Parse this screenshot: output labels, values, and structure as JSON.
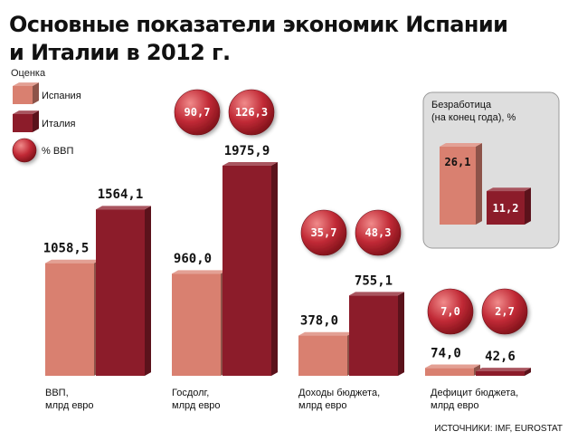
{
  "header": {
    "title_line1": "Основные показатели экономик Испании",
    "title_line2": "и Италии в 2012 г.",
    "subtitle": "Оценка"
  },
  "legend": {
    "spain": "Испания",
    "italy": "Италия",
    "gdp_pct": "% ВВП"
  },
  "colors": {
    "spain": "#d98070",
    "italy": "#8c1c2a",
    "circle": "#c12a36",
    "box": "#dedede"
  },
  "chart_data": [
    {
      "type": "bar",
      "categories": [
        "ВВП, млрд евро",
        "Госдолг, млрд евро",
        "Доходы бюджета, млрд евро",
        "Дефицит бюджета, млрд евро"
      ],
      "category_lines": [
        [
          "ВВП,",
          "млрд евро"
        ],
        [
          "Госдолг,",
          "млрд евро"
        ],
        [
          "Доходы бюджета,",
          "млрд евро"
        ],
        [
          "Дефицит бюджета,",
          "млрд евро"
        ]
      ],
      "series": [
        {
          "name": "Испания",
          "values": [
            1058.5,
            960.0,
            378.0,
            74.0
          ],
          "labels": [
            "1058,5",
            "960,0",
            "378,0",
            "74,0"
          ]
        },
        {
          "name": "Италия",
          "values": [
            1564.1,
            1975.9,
            755.1,
            42.6
          ],
          "labels": [
            "1564,1",
            "1975,9",
            "755,1",
            "42,6"
          ]
        }
      ],
      "gdp_percent": [
        null,
        {
          "spain": 90.7,
          "italy": 126.3,
          "spain_label": "90,7",
          "italy_label": "126,3"
        },
        {
          "spain": 35.7,
          "italy": 48.3,
          "spain_label": "35,7",
          "italy_label": "48,3"
        },
        {
          "spain": 7.0,
          "italy": 2.7,
          "spain_label": "7,0",
          "italy_label": "2,7"
        }
      ]
    },
    {
      "type": "bar",
      "title": "Безработица (на конец года), %",
      "title_lines": [
        "Безработица",
        "(на конец года), %"
      ],
      "categories": [
        "Испания",
        "Италия"
      ],
      "values": [
        26.1,
        11.2
      ],
      "labels": [
        "26,1",
        "11,2"
      ]
    }
  ],
  "source": "ИСТОЧНИКИ: IMF, EUROSTAT"
}
